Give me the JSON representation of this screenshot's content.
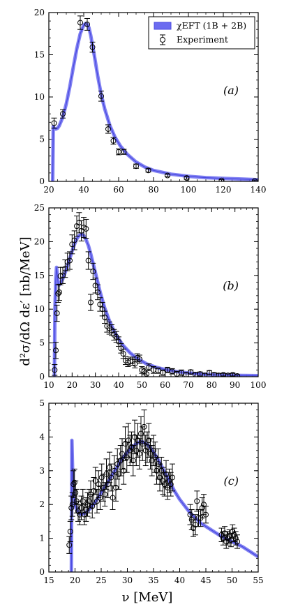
{
  "figure": {
    "ylabel": "d²σ/dΩ dε′  [nb/MeV]",
    "xlabel": "ν  [MeV]",
    "legend": [
      {
        "key": "theory",
        "label": "χEFT (1B + 2B)"
      },
      {
        "key": "experiment",
        "label": "Experiment"
      }
    ]
  },
  "colors": {
    "theory_band": "#6b6bf0",
    "theory_edge": "#4848e0",
    "points": "#000000",
    "background": "#ffffff"
  },
  "chart_data": [
    {
      "type": "line",
      "panel_label": "(a)",
      "xlim": [
        20,
        140
      ],
      "ylim": [
        0,
        20
      ],
      "xticks": [
        20,
        40,
        60,
        80,
        100,
        120,
        140
      ],
      "yticks": [
        0,
        5,
        10,
        15,
        20
      ],
      "legend_position": "top-right",
      "series": [
        {
          "key": "theory",
          "x": [
            22.2,
            22.5,
            23,
            24,
            25,
            26,
            28,
            30,
            32,
            34,
            36,
            38,
            40,
            41,
            42,
            43,
            44,
            46,
            48,
            50,
            52,
            55,
            58,
            61,
            65,
            70,
            75,
            80,
            90,
            100,
            110,
            120,
            130,
            140
          ],
          "y": [
            0.0,
            6.5,
            6.3,
            6.2,
            6.3,
            6.6,
            7.6,
            9.2,
            11.2,
            13.5,
            15.7,
            17.5,
            18.5,
            18.7,
            18.6,
            18.2,
            17.3,
            15.0,
            12.5,
            10.3,
            8.6,
            6.6,
            5.2,
            4.2,
            3.2,
            2.3,
            1.7,
            1.3,
            0.85,
            0.6,
            0.45,
            0.35,
            0.28,
            0.2
          ]
        },
        {
          "key": "experiment",
          "x": [
            23,
            28,
            38,
            42,
            45,
            50,
            54,
            57,
            60,
            63,
            70,
            77,
            88,
            99,
            119,
            138
          ],
          "y": [
            6.9,
            8.0,
            18.8,
            18.6,
            15.9,
            10.1,
            6.2,
            4.8,
            3.5,
            3.5,
            1.8,
            1.3,
            0.7,
            0.4,
            0.1,
            0.05
          ],
          "err": [
            0.6,
            0.5,
            0.8,
            0.7,
            0.6,
            0.6,
            0.5,
            0.4,
            0.35,
            0.3,
            0.25,
            0.2,
            0.15,
            0.15,
            0.1,
            0.1
          ]
        }
      ]
    },
    {
      "type": "line",
      "panel_label": "(b)",
      "xlim": [
        10,
        100
      ],
      "ylim": [
        0,
        25
      ],
      "xticks": [
        10,
        20,
        30,
        40,
        50,
        60,
        70,
        80,
        90,
        100
      ],
      "yticks": [
        0,
        5,
        10,
        15,
        20,
        25
      ],
      "series": [
        {
          "key": "theory",
          "x": [
            12.4,
            12.6,
            13,
            13.3,
            13.6,
            14,
            14.5,
            15,
            16,
            17,
            18,
            19,
            20,
            21,
            22,
            23,
            24,
            25,
            26,
            27,
            28,
            30,
            32,
            34,
            36,
            38,
            40,
            42,
            45,
            48,
            52,
            56,
            60,
            65,
            70,
            75,
            80,
            90,
            100
          ],
          "y": [
            0.0,
            10.0,
            14.5,
            16.2,
            15.2,
            13.8,
            13.6,
            13.8,
            14.5,
            15.4,
            16.4,
            17.5,
            18.6,
            19.6,
            20.4,
            20.9,
            21.1,
            20.9,
            20.3,
            19.4,
            18.2,
            15.4,
            12.6,
            10.2,
            8.3,
            6.8,
            5.6,
            4.6,
            3.5,
            2.7,
            1.9,
            1.4,
            1.05,
            0.75,
            0.55,
            0.4,
            0.3,
            0.2,
            0.15
          ]
        },
        {
          "key": "experiment",
          "x": [
            12.5,
            13,
            13.5,
            14,
            14.5,
            15,
            16,
            17,
            18,
            19,
            20,
            21,
            22,
            23,
            24,
            25,
            26,
            27,
            28,
            29,
            30,
            31,
            32,
            33,
            34,
            35,
            36,
            37,
            38,
            39,
            40,
            41,
            42,
            43,
            44,
            45,
            46,
            47,
            48,
            49,
            50,
            51,
            52,
            53,
            55,
            57,
            59,
            61,
            63,
            65,
            67,
            69,
            71,
            73,
            75,
            77,
            79,
            81,
            83,
            85,
            87,
            89,
            91
          ],
          "y": [
            1.0,
            3.9,
            9.4,
            12.3,
            12.5,
            14.9,
            15.0,
            16.0,
            17.0,
            17.2,
            19.6,
            20.2,
            22.3,
            22.8,
            21.6,
            22.1,
            21.9,
            17.2,
            11.0,
            15.6,
            13.5,
            12.5,
            10.7,
            10.0,
            8.8,
            7.5,
            7.2,
            6.9,
            6.2,
            5.9,
            5.2,
            4.2,
            3.4,
            2.4,
            2.1,
            2.3,
            2.3,
            1.9,
            2.8,
            2.6,
            1.0,
            0.8,
            0.4,
            1.4,
            1.0,
            0.9,
            0.6,
            1.0,
            0.8,
            0.4,
            0.6,
            0.3,
            0.7,
            0.3,
            0.4,
            0.2,
            0.6,
            0.3,
            0.2,
            0.3,
            0.2,
            0.3,
            0.1
          ],
          "err": [
            0.8,
            1.2,
            1.2,
            1.3,
            1.2,
            1.3,
            1.2,
            1.3,
            1.3,
            1.3,
            1.4,
            1.4,
            1.5,
            1.5,
            1.5,
            1.5,
            1.4,
            1.3,
            1.2,
            1.2,
            1.1,
            1.1,
            1.0,
            1.0,
            0.9,
            0.9,
            0.9,
            0.8,
            0.8,
            0.8,
            0.7,
            0.7,
            0.7,
            0.6,
            0.6,
            0.6,
            0.6,
            0.6,
            0.6,
            0.6,
            0.5,
            0.5,
            0.5,
            0.5,
            0.5,
            0.4,
            0.4,
            0.4,
            0.4,
            0.4,
            0.4,
            0.3,
            0.3,
            0.3,
            0.3,
            0.3,
            0.3,
            0.3,
            0.3,
            0.2,
            0.2,
            0.2,
            0.2
          ]
        }
      ]
    },
    {
      "type": "line",
      "panel_label": "(c)",
      "xlim": [
        15,
        55
      ],
      "ylim": [
        0,
        5
      ],
      "xticks": [
        15,
        20,
        25,
        30,
        35,
        40,
        45,
        50,
        55
      ],
      "yticks": [
        0,
        1,
        2,
        3,
        4,
        5
      ],
      "series": [
        {
          "key": "theory",
          "x": [
            19.3,
            19.4,
            19.5,
            19.6,
            19.8,
            20.0,
            20.3,
            20.7,
            21.2,
            22.0,
            23.0,
            24.0,
            25.0,
            26.0,
            27.0,
            28.0,
            29.0,
            30.0,
            31.0,
            32.0,
            32.5,
            33.0,
            34.0,
            35.0,
            36.0,
            37.0,
            38.0,
            39.0,
            40.0,
            41.0,
            42.0,
            43.0,
            44.0,
            45.0,
            46.0,
            47.0,
            48.0,
            50.0,
            52.0,
            55.0
          ],
          "y": [
            0.0,
            3.9,
            3.2,
            2.6,
            2.2,
            2.0,
            1.85,
            1.75,
            1.7,
            1.75,
            1.9,
            2.1,
            2.35,
            2.6,
            2.85,
            3.1,
            3.35,
            3.55,
            3.72,
            3.83,
            3.86,
            3.85,
            3.75,
            3.55,
            3.3,
            3.0,
            2.7,
            2.4,
            2.15,
            1.95,
            1.75,
            1.6,
            1.45,
            1.35,
            1.25,
            1.15,
            1.05,
            0.9,
            0.75,
            0.45
          ]
        },
        {
          "key": "experiment",
          "x": [
            18.9,
            19.1,
            19.3,
            19.5,
            19.7,
            19.9,
            20.1,
            20.3,
            20.6,
            20.9,
            21.2,
            21.5,
            21.8,
            22.1,
            22.4,
            22.7,
            23.0,
            23.3,
            23.6,
            23.9,
            24.2,
            24.5,
            24.8,
            25.1,
            25.4,
            25.7,
            26.0,
            26.3,
            26.6,
            26.9,
            27.2,
            27.5,
            27.8,
            28.1,
            28.4,
            28.7,
            29.0,
            29.3,
            29.6,
            29.9,
            30.2,
            30.5,
            30.8,
            31.1,
            31.4,
            31.7,
            32.0,
            32.3,
            32.6,
            32.9,
            33.2,
            33.5,
            33.8,
            34.1,
            34.4,
            34.7,
            35.0,
            35.3,
            35.6,
            35.9,
            36.2,
            36.5,
            36.8,
            37.1,
            37.4,
            37.7,
            38.0,
            38.3,
            38.6,
            42.0,
            42.3,
            42.6,
            43.0,
            43.3,
            43.6,
            44.0,
            44.3,
            44.6,
            45.0,
            48.0,
            48.3,
            48.6,
            48.9,
            49.2,
            49.5,
            49.8,
            50.1,
            50.4,
            50.7,
            51.0
          ],
          "y": [
            0.8,
            1.2,
            1.9,
            2.0,
            2.6,
            2.65,
            2.35,
            2.1,
            1.8,
            1.7,
            1.9,
            2.1,
            1.7,
            1.85,
            2.0,
            2.1,
            2.3,
            1.95,
            2.4,
            2.7,
            2.1,
            2.6,
            2.2,
            2.8,
            2.5,
            2.3,
            2.9,
            2.6,
            3.1,
            2.8,
            2.2,
            3.0,
            2.5,
            3.2,
            2.9,
            3.3,
            3.5,
            3.0,
            3.8,
            3.4,
            3.9,
            3.6,
            3.7,
            3.3,
            4.0,
            3.6,
            3.9,
            3.5,
            4.1,
            3.8,
            4.3,
            3.6,
            3.7,
            3.9,
            3.5,
            3.3,
            3.6,
            3.4,
            3.0,
            3.2,
            2.8,
            3.0,
            2.7,
            2.6,
            2.9,
            2.5,
            2.7,
            2.6,
            2.8,
            1.7,
            1.55,
            1.3,
            1.4,
            2.1,
            1.6,
            1.6,
            1.9,
            2.0,
            1.7,
            1.1,
            1.0,
            1.15,
            0.9,
            1.0,
            1.05,
            0.95,
            1.2,
            1.1,
            1.0,
            0.9
          ],
          "err": [
            0.25,
            0.3,
            0.35,
            0.35,
            0.4,
            0.4,
            0.35,
            0.35,
            0.3,
            0.3,
            0.35,
            0.35,
            0.3,
            0.35,
            0.35,
            0.35,
            0.4,
            0.35,
            0.4,
            0.4,
            0.35,
            0.4,
            0.35,
            0.4,
            0.4,
            0.35,
            0.45,
            0.4,
            0.45,
            0.4,
            0.35,
            0.45,
            0.4,
            0.45,
            0.45,
            0.45,
            0.45,
            0.4,
            0.5,
            0.45,
            0.5,
            0.45,
            0.45,
            0.45,
            0.5,
            0.45,
            0.5,
            0.45,
            0.5,
            0.5,
            0.5,
            0.45,
            0.45,
            0.5,
            0.45,
            0.45,
            0.45,
            0.45,
            0.4,
            0.45,
            0.4,
            0.4,
            0.4,
            0.35,
            0.4,
            0.35,
            0.35,
            0.35,
            0.4,
            0.3,
            0.3,
            0.25,
            0.3,
            0.3,
            0.25,
            0.25,
            0.3,
            0.3,
            0.25,
            0.2,
            0.2,
            0.2,
            0.2,
            0.2,
            0.2,
            0.2,
            0.2,
            0.2,
            0.2,
            0.2
          ]
        }
      ]
    }
  ]
}
